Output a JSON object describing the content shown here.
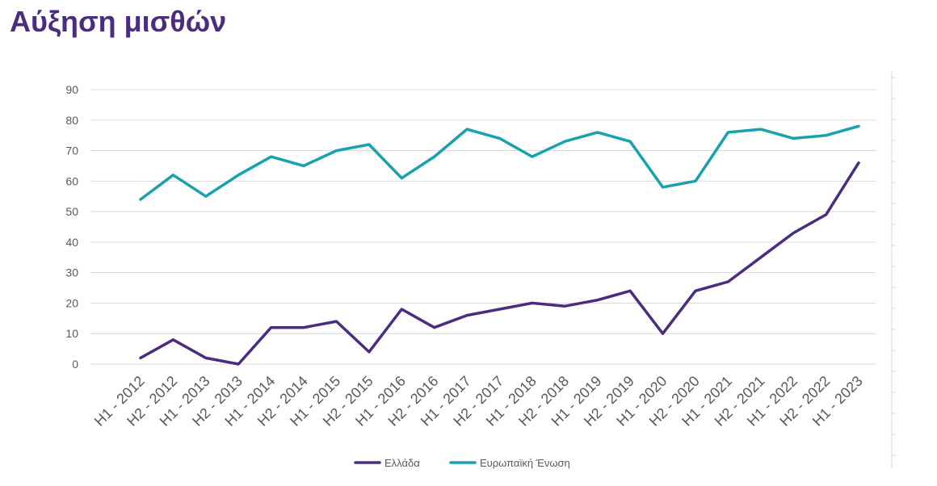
{
  "title": "Αύξηση μισθών",
  "chart_data": {
    "type": "line",
    "title": "Αύξηση μισθών",
    "xlabel": "",
    "ylabel": "",
    "ylim": [
      0,
      90
    ],
    "yticks": [
      0,
      10,
      20,
      30,
      40,
      50,
      60,
      70,
      80,
      90
    ],
    "grid": true,
    "legend_position": "bottom",
    "categories": [
      "H1 - 2012",
      "H2 - 2012",
      "H1 - 2013",
      "H2 - 2013",
      "H1 - 2014",
      "H2 - 2014",
      "H1 - 2015",
      "H2 - 2015",
      "H1 - 2016",
      "H2 - 2016",
      "H1 - 2017",
      "H2 - 2017",
      "H1 - 2018",
      "H2 - 2018",
      "H1 - 2019",
      "H2 - 2019",
      "H1 - 2020",
      "H2 - 2020",
      "H1 - 2021",
      "H2 - 2021",
      "H1 - 2022",
      "H2 - 2022",
      "H1 - 2023"
    ],
    "series": [
      {
        "name": "Ελλάδα",
        "color": "#4b2c7f",
        "values": [
          2,
          8,
          2,
          0,
          12,
          12,
          14,
          4,
          18,
          12,
          16,
          18,
          20,
          19,
          21,
          24,
          10,
          24,
          27,
          35,
          43,
          49,
          66
        ]
      },
      {
        "name": "Ευρωπαϊκή Ένωση",
        "color": "#17a2ad",
        "values": [
          54,
          62,
          55,
          62,
          68,
          65,
          70,
          72,
          61,
          68,
          77,
          74,
          68,
          73,
          76,
          73,
          58,
          60,
          76,
          77,
          74,
          75,
          78
        ]
      }
    ]
  }
}
